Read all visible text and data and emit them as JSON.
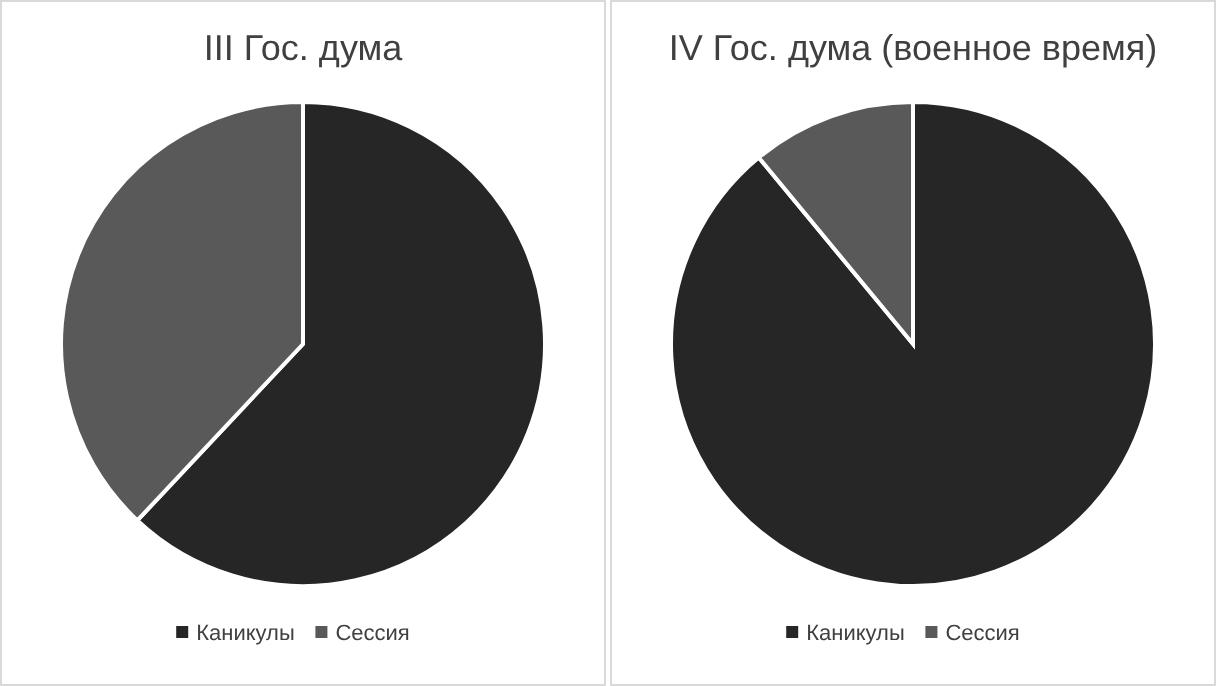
{
  "chart_data": [
    {
      "type": "pie",
      "title": "III Гос. дума",
      "categories": [
        "Каникулы",
        "Сессия"
      ],
      "values": [
        62,
        38
      ],
      "colors": [
        "#262626",
        "#595959"
      ],
      "legend": "bottom"
    },
    {
      "type": "pie",
      "title": "IV Гос. дума (военное время)",
      "categories": [
        "Каникулы",
        "Сессия"
      ],
      "values": [
        89,
        11
      ],
      "colors": [
        "#262626",
        "#595959"
      ],
      "legend": "bottom"
    }
  ]
}
